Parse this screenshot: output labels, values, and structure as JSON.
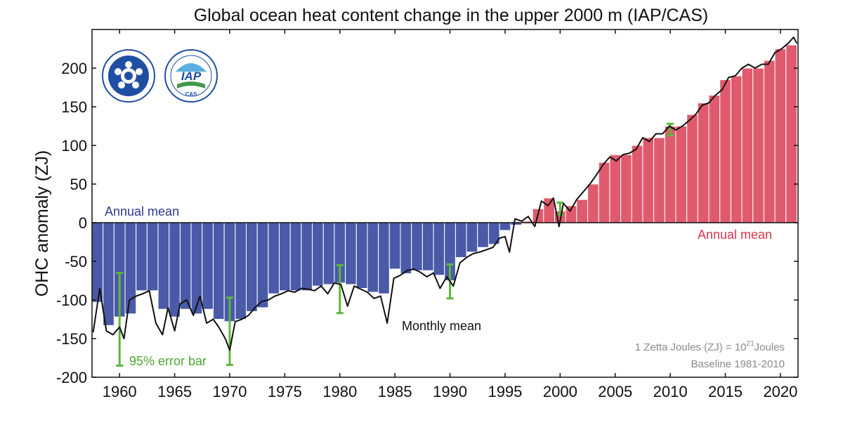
{
  "chart_data": {
    "type": "bar",
    "title": "Global ocean heat content change in the upper 2000 m (IAP/CAS)",
    "ylabel": "OHC anomaly (ZJ)",
    "xlabel": "",
    "xlim": [
      1957.5,
      2021.6
    ],
    "ylim": [
      -200,
      250
    ],
    "yticks": [
      -200,
      -150,
      -100,
      -50,
      0,
      50,
      100,
      150,
      200
    ],
    "xticks": [
      1960,
      1965,
      1970,
      1975,
      1980,
      1985,
      1990,
      1995,
      2000,
      2005,
      2010,
      2015,
      2020
    ],
    "grid": false,
    "colors": {
      "negative": "#4a5aa8",
      "positive": "#e05a6e",
      "monthly": "#111111",
      "error": "#5cb83c",
      "note": "#8a8a8a"
    },
    "annual_mean": {
      "years": [
        1958,
        1959,
        1960,
        1961,
        1962,
        1963,
        1964,
        1965,
        1966,
        1967,
        1968,
        1969,
        1970,
        1971,
        1972,
        1973,
        1974,
        1975,
        1976,
        1977,
        1978,
        1979,
        1980,
        1981,
        1982,
        1983,
        1984,
        1985,
        1986,
        1987,
        1988,
        1989,
        1990,
        1991,
        1992,
        1993,
        1994,
        1995,
        1996,
        1997,
        1998,
        1999,
        2000,
        2001,
        2002,
        2003,
        2004,
        2005,
        2006,
        2007,
        2008,
        2009,
        2010,
        2011,
        2012,
        2013,
        2014,
        2015,
        2016,
        2017,
        2018,
        2019,
        2020,
        2021
      ],
      "values": [
        -103,
        -133,
        -122,
        -118,
        -88,
        -88,
        -112,
        -122,
        -112,
        -118,
        -112,
        -125,
        -128,
        -125,
        -115,
        -110,
        -92,
        -88,
        -88,
        -88,
        -82,
        -80,
        -78,
        -80,
        -85,
        -90,
        -92,
        -60,
        -66,
        -62,
        -62,
        -68,
        -75,
        -45,
        -38,
        -32,
        -28,
        -10,
        -3,
        2,
        18,
        32,
        15,
        22,
        30,
        50,
        78,
        88,
        88,
        100,
        110,
        110,
        125,
        125,
        140,
        155,
        165,
        185,
        190,
        200,
        200,
        210,
        225,
        230
      ]
    },
    "monthly_mean": {
      "years": [
        1957.6,
        1958.2,
        1958.8,
        1959.4,
        1960.0,
        1960.4,
        1960.9,
        1961.5,
        1962.1,
        1962.7,
        1963.3,
        1963.9,
        1964.4,
        1965.0,
        1965.5,
        1966.1,
        1966.7,
        1967.3,
        1967.9,
        1968.5,
        1969.0,
        1969.6,
        1970.0,
        1970.5,
        1971.1,
        1971.7,
        1972.3,
        1972.9,
        1973.5,
        1974.1,
        1974.7,
        1975.3,
        1975.9,
        1976.5,
        1977.1,
        1977.7,
        1978.3,
        1978.9,
        1979.5,
        1980.1,
        1980.7,
        1981.3,
        1981.9,
        1982.5,
        1983.1,
        1983.7,
        1984.3,
        1984.9,
        1985.5,
        1986.1,
        1986.7,
        1987.3,
        1987.9,
        1988.5,
        1989.1,
        1989.7,
        1990.3,
        1990.9,
        1991.5,
        1992.1,
        1992.7,
        1993.3,
        1993.9,
        1994.5,
        1995.0,
        1995.4,
        1995.9,
        1996.5,
        1997.1,
        1997.7,
        1998.3,
        1998.9,
        1999.4,
        1999.9,
        2000.3,
        2000.9,
        2001.5,
        2002.1,
        2002.7,
        2003.3,
        2003.9,
        2004.5,
        2005.1,
        2005.7,
        2006.3,
        2006.9,
        2007.5,
        2008.1,
        2008.7,
        2009.3,
        2009.9,
        2010.5,
        2011.1,
        2011.7,
        2012.3,
        2012.9,
        2013.5,
        2014.1,
        2014.7,
        2015.3,
        2015.9,
        2016.5,
        2017.1,
        2017.7,
        2018.3,
        2018.9,
        2019.5,
        2020.1,
        2020.7,
        2021.2,
        2021.5
      ],
      "values": [
        -142,
        -85,
        -140,
        -145,
        -135,
        -150,
        -100,
        -95,
        -92,
        -88,
        -130,
        -145,
        -110,
        -140,
        -105,
        -100,
        -120,
        -95,
        -130,
        -125,
        -135,
        -150,
        -165,
        -128,
        -125,
        -120,
        -110,
        -102,
        -100,
        -95,
        -92,
        -88,
        -90,
        -85,
        -86,
        -88,
        -82,
        -92,
        -78,
        -80,
        -108,
        -82,
        -86,
        -90,
        -98,
        -95,
        -130,
        -72,
        -68,
        -62,
        -60,
        -64,
        -70,
        -65,
        -85,
        -70,
        -82,
        -52,
        -45,
        -40,
        -38,
        -35,
        -32,
        -20,
        -18,
        -38,
        5,
        2,
        8,
        -5,
        28,
        22,
        32,
        -5,
        25,
        15,
        30,
        40,
        50,
        62,
        75,
        85,
        80,
        88,
        90,
        95,
        110,
        105,
        115,
        115,
        125,
        120,
        125,
        132,
        140,
        152,
        155,
        165,
        172,
        188,
        190,
        200,
        205,
        200,
        205,
        205,
        220,
        225,
        232,
        240,
        232
      ],
      "label": "Monthly mean"
    },
    "error_bars": [
      {
        "year": 1960,
        "low": -185,
        "high": -65
      },
      {
        "year": 1970,
        "low": -184,
        "high": -97
      },
      {
        "year": 1980,
        "low": -117,
        "high": -55
      },
      {
        "year": 1990,
        "low": -98,
        "high": -54
      },
      {
        "year": 2000,
        "low": 10,
        "high": 26
      },
      {
        "year": 2010,
        "low": 113,
        "high": 128
      }
    ],
    "annotations": {
      "annual_mean_negative": "Annual mean",
      "annual_mean_positive": "Annual mean",
      "monthly_mean": "Monthly mean",
      "error_bar": "95% error bar",
      "units_note_prefix": "1 Zetta Joules (ZJ) = 10",
      "units_note_exp": "21",
      "units_note_suffix": "Joules",
      "baseline_note": "Baseline 1981-2010"
    },
    "logos": [
      "cas-logo",
      "iap-logo"
    ]
  }
}
